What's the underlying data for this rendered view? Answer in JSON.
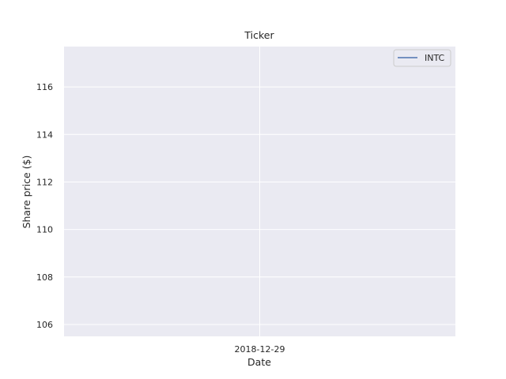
{
  "chart_data": {
    "type": "line",
    "title": "Ticker",
    "xlabel": "Date",
    "ylabel": "Share price ($)",
    "x_ticks": [
      "2018-12-29"
    ],
    "y_ticks": [
      106,
      108,
      110,
      112,
      114,
      116
    ],
    "ylim": [
      105.5,
      117.7
    ],
    "grid": true,
    "legend_position": "top-right",
    "series": [
      {
        "name": "INTC",
        "color": "#4c72b0",
        "x": [],
        "y": []
      }
    ],
    "background": "#eaeaf2",
    "grid_color": "#ffffff"
  }
}
